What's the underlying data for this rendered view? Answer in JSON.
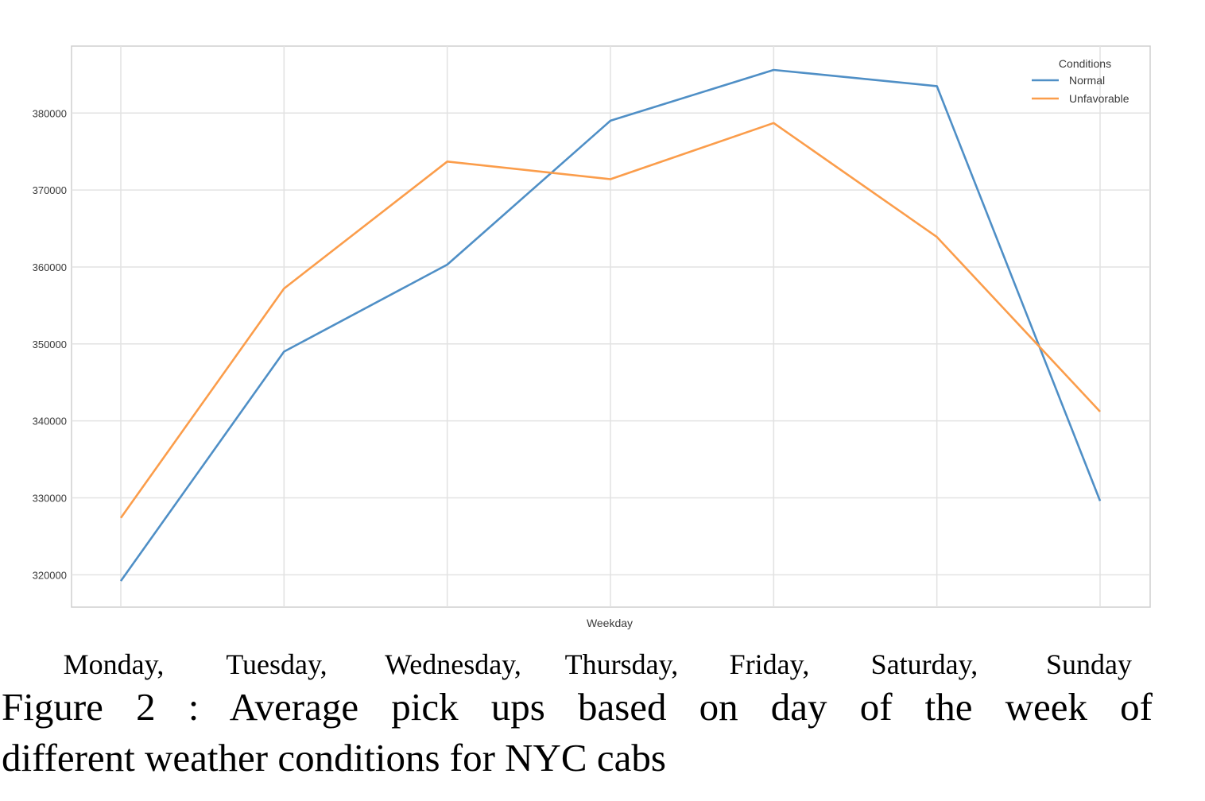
{
  "chart_data": {
    "type": "line",
    "categories": [
      "Monday,",
      "Tuesday,",
      "Wednesday,",
      "Thursday,",
      "Friday,",
      "Saturday,",
      "Sunday"
    ],
    "series": [
      {
        "name": "Normal",
        "color": "#4f8fc6",
        "values": [
          319200,
          349000,
          360300,
          379000,
          385600,
          383500,
          329600
        ]
      },
      {
        "name": "Unfavorable",
        "color": "#fb9d4b",
        "values": [
          327400,
          357200,
          373700,
          371400,
          378700,
          363900,
          341200
        ]
      }
    ],
    "xlabel": "Weekday",
    "ylabel": "",
    "yticks": [
      320000,
      330000,
      340000,
      350000,
      360000,
      370000,
      380000
    ],
    "ylim": [
      315800,
      388700
    ],
    "grid": true,
    "legend": {
      "title": "Conditions",
      "placement": "top-right"
    }
  },
  "caption": {
    "line1": "Figure 2 : Average pick ups based on day of the week of",
    "line2": "different weather conditions for NYC cabs"
  }
}
